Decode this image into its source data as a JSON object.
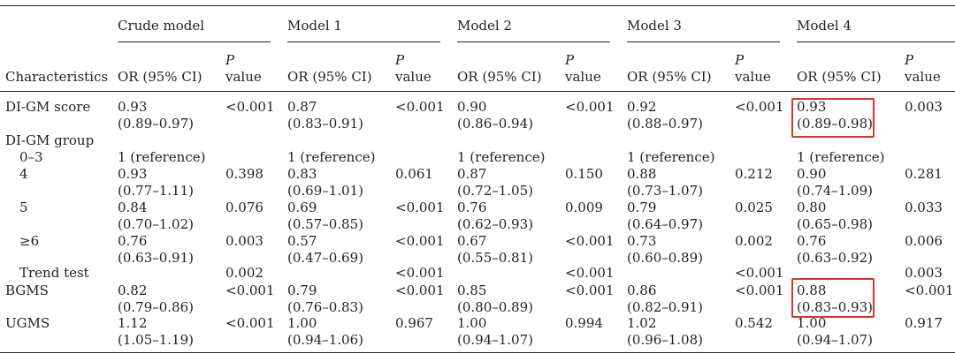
{
  "table": {
    "model_headers": [
      "Crude model",
      "Model 1",
      "Model 2",
      "Model 3",
      "Model 4"
    ],
    "col_characteristics": "Characteristics",
    "col_or": "OR (95% CI)",
    "col_p_symbol": "P",
    "col_p_word": "value",
    "rows": [
      {
        "label": "DI-GM score",
        "indent": false,
        "cells": [
          {
            "or": "0.93",
            "ci": "(0.89–0.97)",
            "p": "<0.001"
          },
          {
            "or": "0.87",
            "ci": "(0.83–0.91)",
            "p": "<0.001"
          },
          {
            "or": "0.90",
            "ci": "(0.86–0.94)",
            "p": "<0.001"
          },
          {
            "or": "0.92",
            "ci": "(0.88–0.97)",
            "p": "<0.001"
          },
          {
            "or": "0.93",
            "ci": "(0.89–0.98)",
            "p": "0.003"
          }
        ]
      },
      {
        "label": "DI-GM group",
        "indent": false,
        "cells": []
      },
      {
        "label": "0–3",
        "indent": true,
        "cells": [
          {
            "or": "1 (reference)",
            "ci": "",
            "p": ""
          },
          {
            "or": "1 (reference)",
            "ci": "",
            "p": ""
          },
          {
            "or": "1 (reference)",
            "ci": "",
            "p": ""
          },
          {
            "or": "1 (reference)",
            "ci": "",
            "p": ""
          },
          {
            "or": "1 (reference)",
            "ci": "",
            "p": ""
          }
        ]
      },
      {
        "label": "4",
        "indent": true,
        "cells": [
          {
            "or": "0.93",
            "ci": "(0.77–1.11)",
            "p": "0.398"
          },
          {
            "or": "0.83",
            "ci": "(0.69–1.01)",
            "p": "0.061"
          },
          {
            "or": "0.87",
            "ci": "(0.72–1.05)",
            "p": "0.150"
          },
          {
            "or": "0.88",
            "ci": "(0.73–1.07)",
            "p": "0.212"
          },
          {
            "or": "0.90",
            "ci": "(0.74–1.09)",
            "p": "0.281"
          }
        ]
      },
      {
        "label": "5",
        "indent": true,
        "cells": [
          {
            "or": "0.84",
            "ci": "(0.70–1.02)",
            "p": "0.076"
          },
          {
            "or": "0.69",
            "ci": "(0.57–0.85)",
            "p": "<0.001"
          },
          {
            "or": "0.76",
            "ci": "(0.62–0.93)",
            "p": "0.009"
          },
          {
            "or": "0.79",
            "ci": "(0.64–0.97)",
            "p": "0.025"
          },
          {
            "or": "0.80",
            "ci": "(0.65–0.98)",
            "p": "0.033"
          }
        ]
      },
      {
        "label": "≥6",
        "indent": true,
        "cells": [
          {
            "or": "0.76",
            "ci": "(0.63–0.91)",
            "p": "0.003"
          },
          {
            "or": "0.57",
            "ci": "(0.47–0.69)",
            "p": "<0.001"
          },
          {
            "or": "0.67",
            "ci": "(0.55–0.81)",
            "p": "<0.001"
          },
          {
            "or": "0.73",
            "ci": "(0.60–0.89)",
            "p": "0.002"
          },
          {
            "or": "0.76",
            "ci": "(0.63–0.92)",
            "p": "0.006"
          }
        ]
      },
      {
        "label": "Trend test",
        "indent": true,
        "cells": [
          {
            "or": "",
            "ci": "",
            "p": "0.002"
          },
          {
            "or": "",
            "ci": "",
            "p": "<0.001"
          },
          {
            "or": "",
            "ci": "",
            "p": "<0.001"
          },
          {
            "or": "",
            "ci": "",
            "p": "<0.001"
          },
          {
            "or": "",
            "ci": "",
            "p": "0.003"
          }
        ]
      },
      {
        "label": "BGMS",
        "indent": false,
        "cells": [
          {
            "or": "0.82",
            "ci": "(0.79–0.86)",
            "p": "<0.001"
          },
          {
            "or": "0.79",
            "ci": "(0.76–0.83)",
            "p": "<0.001"
          },
          {
            "or": "0.85",
            "ci": "(0.80–0.89)",
            "p": "<0.001"
          },
          {
            "or": "0.86",
            "ci": "(0.82–0.91)",
            "p": "<0.001"
          },
          {
            "or": "0.88",
            "ci": "(0.83–0.93)",
            "p": "<0.001"
          }
        ]
      },
      {
        "label": "UGMS",
        "indent": false,
        "cells": [
          {
            "or": "1.12",
            "ci": "(1.05–1.19)",
            "p": "<0.001"
          },
          {
            "or": "1.00",
            "ci": "(0.94–1.06)",
            "p": "0.967"
          },
          {
            "or": "1.00",
            "ci": "(0.94–1.07)",
            "p": "0.994"
          },
          {
            "or": "1.02",
            "ci": "(0.96–1.08)",
            "p": "0.542"
          },
          {
            "or": "1.00",
            "ci": "(0.94–1.07)",
            "p": "0.917"
          }
        ]
      }
    ]
  },
  "highlight_color": "#e0312b"
}
